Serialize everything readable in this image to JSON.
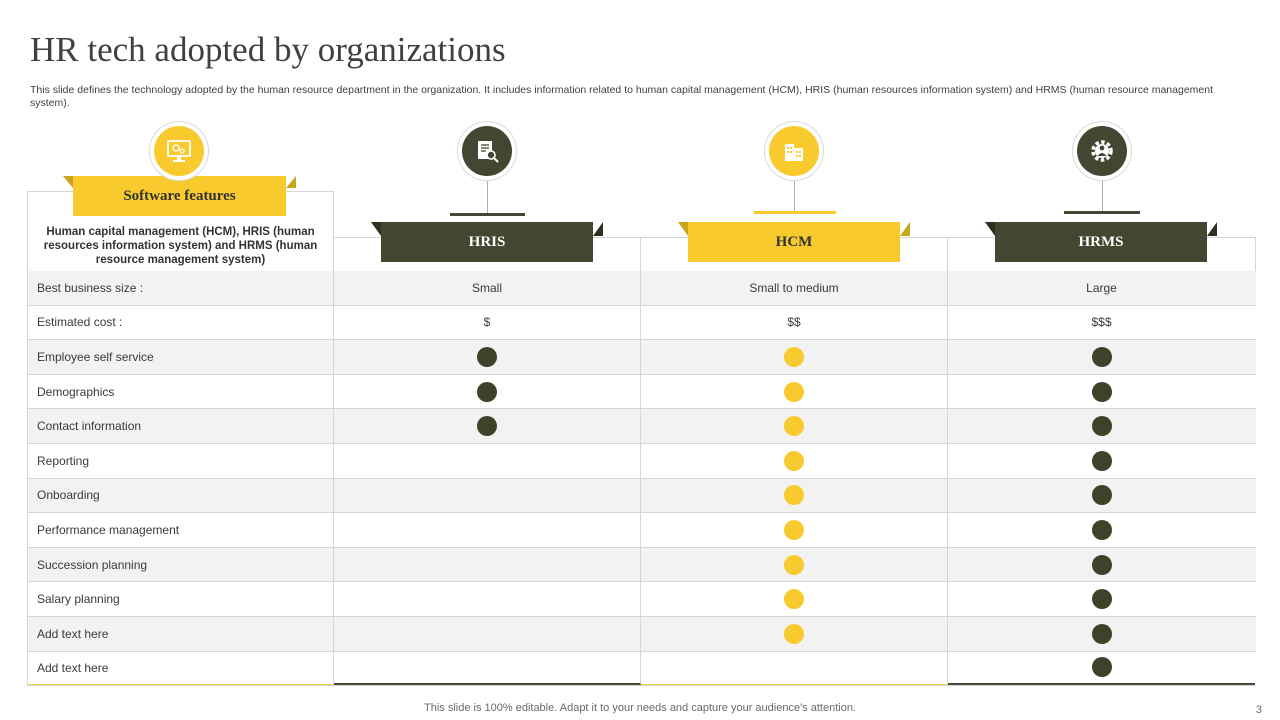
{
  "title": "HR tech adopted by organizations",
  "subtitle": "This slide defines the technology adopted by the human resource department in the organization. It includes information related to human capital management (HCM), HRIS (human resources information system) and HRMS (human resource management system).",
  "features_header": {
    "label": "Software features",
    "description": "Human capital management (HCM), HRIS (human resources information system) and HRMS (human resource management system)"
  },
  "columns": [
    {
      "label": "HRIS",
      "color": "#434630",
      "icon": "document-search-icon"
    },
    {
      "label": "HCM",
      "color": "#f8ca2d",
      "icon": "building-icon"
    },
    {
      "label": "HRMS",
      "color": "#434630",
      "icon": "gear-person-icon"
    }
  ],
  "rows": [
    {
      "label": "Best business size :",
      "values": [
        "Small",
        "Small to medium",
        "Large"
      ]
    },
    {
      "label": "Estimated cost :",
      "values": [
        "$",
        "$$",
        "$$$"
      ]
    },
    {
      "label": "Employee self service",
      "marks": [
        true,
        true,
        true
      ]
    },
    {
      "label": "Demographics",
      "marks": [
        true,
        true,
        true
      ]
    },
    {
      "label": "Contact information",
      "marks": [
        true,
        true,
        true
      ]
    },
    {
      "label": "Reporting",
      "marks": [
        false,
        true,
        true
      ]
    },
    {
      "label": "Onboarding",
      "marks": [
        false,
        true,
        true
      ]
    },
    {
      "label": "Performance management",
      "marks": [
        false,
        true,
        true
      ]
    },
    {
      "label": "Succession planning",
      "marks": [
        false,
        true,
        true
      ]
    },
    {
      "label": "Salary planning",
      "marks": [
        false,
        true,
        true
      ]
    },
    {
      "label": "Add text here",
      "marks": [
        false,
        true,
        true
      ]
    },
    {
      "label": "Add text here",
      "marks": [
        false,
        false,
        true
      ]
    }
  ],
  "colors": {
    "accent_yellow": "#f8ca2d",
    "accent_dark": "#434630"
  },
  "footer": "This slide is 100% editable. Adapt it to your needs and capture your audience's attention.",
  "page_number": "3"
}
